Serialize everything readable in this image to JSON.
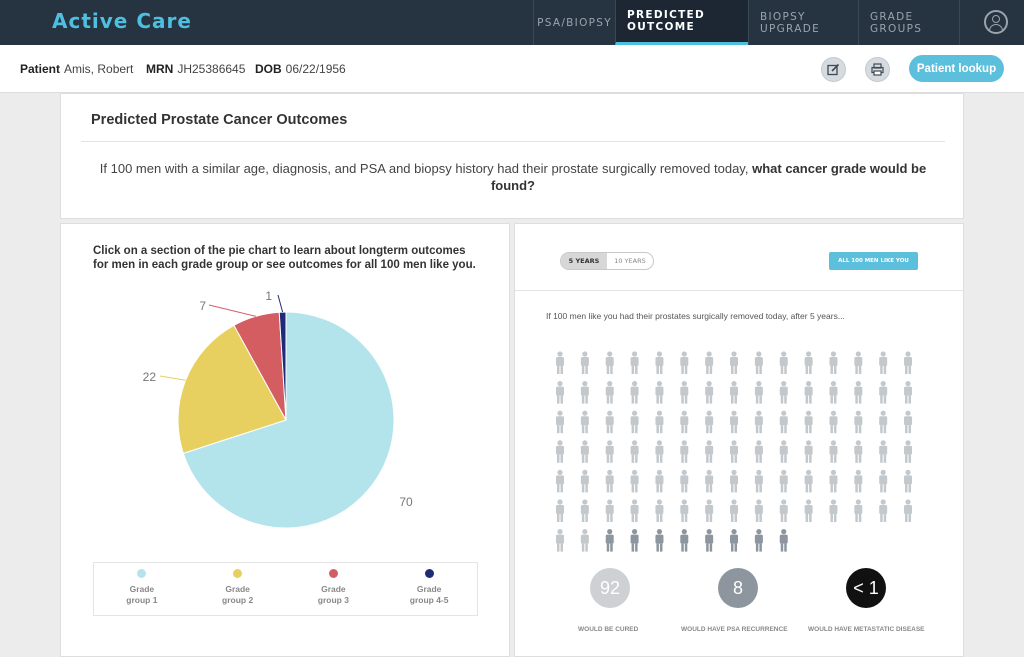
{
  "app": {
    "title": "Active Care"
  },
  "nav": {
    "tabs": [
      {
        "label": "PSA/BIOPSY",
        "active": false
      },
      {
        "label": "PREDICTED OUTCOME",
        "active": true
      },
      {
        "label": "BIOPSY UPGRADE",
        "active": false
      },
      {
        "label": "GRADE GROUPS",
        "active": false
      }
    ],
    "user_icon": "user-circle-icon"
  },
  "patient": {
    "patient_label": "Patient",
    "name": "Amis, Robert",
    "mrn_label": "MRN",
    "mrn": "JH25386645",
    "dob_label": "DOB",
    "dob": "06/22/1956",
    "edit_icon": "edit-icon",
    "print_icon": "print-icon",
    "lookup_label": "Patient lookup"
  },
  "outcomes": {
    "title": "Predicted Prostate Cancer Outcomes",
    "question_plain": "If 100 men with a similar age, diagnosis, and PSA and biopsy history had their prostate surgically removed today,",
    "question_bold": "what cancer grade would be found?"
  },
  "left_panel": {
    "instructions": "Click on a section of the pie chart to learn about longterm outcomes for men in each grade group or see outcomes for all 100 men like you.",
    "legend": [
      {
        "line1": "Grade",
        "line2": "group 1",
        "color": "#b3e4ec"
      },
      {
        "line1": "Grade",
        "line2": "group 2",
        "color": "#e8d060"
      },
      {
        "line1": "Grade",
        "line2": "group 3",
        "color": "#d45d62"
      },
      {
        "line1": "Grade",
        "line2": "group 4-5",
        "color": "#1f2a78"
      }
    ]
  },
  "chart_data": {
    "type": "pie",
    "categories": [
      "Grade group 1",
      "Grade group 2",
      "Grade group 3",
      "Grade group 4-5"
    ],
    "values": [
      70,
      22,
      7,
      1
    ],
    "labels": [
      "70",
      "22",
      "7",
      "1"
    ],
    "colors": [
      "#b3e4ec",
      "#e8d060",
      "#d45d62",
      "#1f2a78"
    ]
  },
  "right_panel": {
    "toggle": [
      {
        "label": "5 YEARS",
        "active": true
      },
      {
        "label": "10 YEARS",
        "active": false
      }
    ],
    "all_button": "ALL 100 MEN LIKE YOU",
    "subtitle": "If 100 men like you had their prostates surgically removed today, after 5 years...",
    "people": {
      "total": 100,
      "cured": 92,
      "psa_recurrence": 8,
      "metastatic": 0,
      "colors": {
        "cured": "#c3c8cc",
        "psa_recurrence": "#8d969f"
      }
    },
    "stats": [
      {
        "value": "92",
        "label": "WOULD BE CURED",
        "color": "#cdd1d4"
      },
      {
        "value": "8",
        "label": "WOULD HAVE PSA RECURRENCE",
        "color": "#8d969f"
      },
      {
        "value": "< 1",
        "label": "WOULD HAVE METASTATIC DISEASE",
        "color": "#111111"
      }
    ]
  }
}
